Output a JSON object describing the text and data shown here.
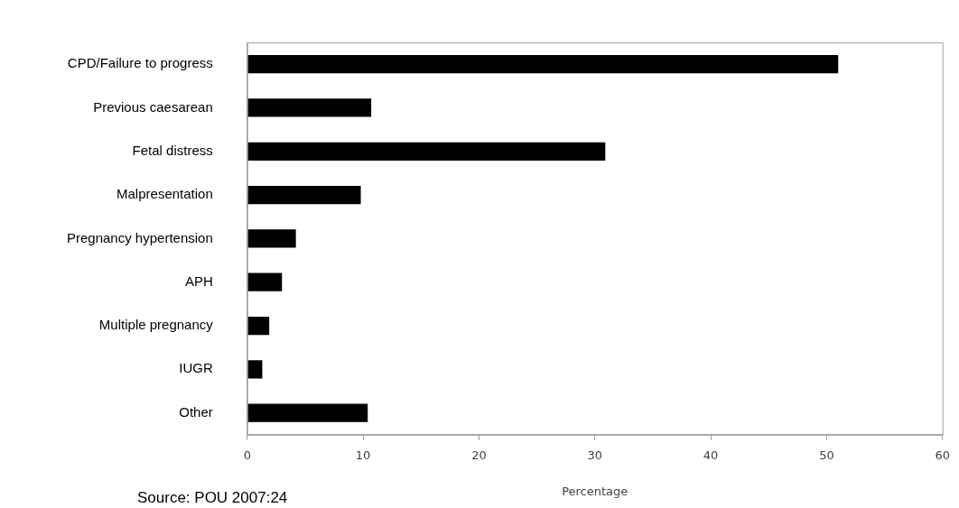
{
  "chart_data": {
    "type": "bar",
    "orientation": "horizontal",
    "xlabel": "Percentage",
    "annotations": [
      "Source: POU 2007:24"
    ],
    "categories": [
      "CPD/Failure to progress",
      "Previous caesarean",
      "Fetal distress",
      "Malpresentation",
      "Pregnancy hypertension",
      "APH",
      "Multiple pregnancy",
      "IUGR",
      "Other"
    ],
    "values": [
      51,
      10.7,
      30.9,
      9.8,
      4.2,
      3.0,
      1.9,
      1.3,
      10.4
    ],
    "color": "#000000",
    "xlim": [
      0,
      60
    ],
    "xticks": [
      0,
      10,
      20,
      30,
      40,
      50,
      60
    ],
    "grid": false,
    "legend": false
  }
}
